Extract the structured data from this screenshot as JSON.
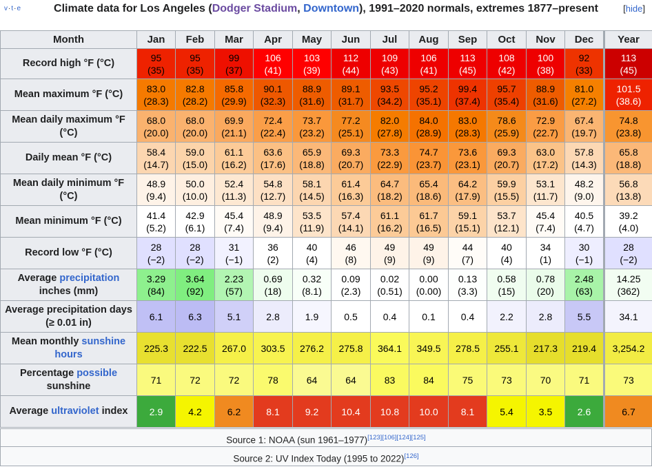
{
  "navbox": {
    "v": "v",
    "t": "t",
    "e": "e",
    "dot": "·"
  },
  "title": {
    "prefix": "Climate data for Los Angeles (",
    "link1": "Dodger Stadium",
    "sep": ", ",
    "link2": "Downtown",
    "suffix": "), 1991–2020 normals, extremes 1877–present"
  },
  "hide_label": "hide",
  "header": [
    "Month",
    "Jan",
    "Feb",
    "Mar",
    "Apr",
    "May",
    "Jun",
    "Jul",
    "Aug",
    "Sep",
    "Oct",
    "Nov",
    "Dec",
    "Year"
  ],
  "rows": [
    {
      "label": "Record high °F (°C)",
      "height": 44,
      "cells": [
        [
          "95",
          "(35)",
          "#ee2200",
          "#000"
        ],
        [
          "95",
          "(35)",
          "#ee2200",
          "#000"
        ],
        [
          "99",
          "(37)",
          "#ee1000",
          "#000"
        ],
        [
          "106",
          "(41)",
          "#ff0000",
          "#fff"
        ],
        [
          "103",
          "(39)",
          "#ff0000",
          "#fff"
        ],
        [
          "112",
          "(44)",
          "#ee0000",
          "#fff"
        ],
        [
          "109",
          "(43)",
          "#ee0000",
          "#fff"
        ],
        [
          "106",
          "(41)",
          "#ee0000",
          "#fff"
        ],
        [
          "113",
          "(45)",
          "#ee0000",
          "#fff"
        ],
        [
          "108",
          "(42)",
          "#ee0000",
          "#fff"
        ],
        [
          "100",
          "(38)",
          "#ee0000",
          "#fff"
        ],
        [
          "92",
          "(33)",
          "#ee3300",
          "#000"
        ],
        [
          "113",
          "(45)",
          "#cc0000",
          "#fff"
        ]
      ]
    },
    {
      "label": "Mean maximum °F (°C)",
      "height": 46,
      "cells": [
        [
          "83.0",
          "(28.3)",
          "#f57a00",
          "#000"
        ],
        [
          "82.8",
          "(28.2)",
          "#f57a00",
          "#000"
        ],
        [
          "85.8",
          "(29.9)",
          "#f56a00",
          "#000"
        ],
        [
          "90.1",
          "(32.3)",
          "#ee5800",
          "#000"
        ],
        [
          "88.9",
          "(31.6)",
          "#ee5c00",
          "#000"
        ],
        [
          "89.1",
          "(31.7)",
          "#ee5c00",
          "#000"
        ],
        [
          "93.5",
          "(34.2)",
          "#ee4800",
          "#000"
        ],
        [
          "95.2",
          "(35.1)",
          "#ee4400",
          "#000"
        ],
        [
          "99.4",
          "(37.4)",
          "#ee3300",
          "#000"
        ],
        [
          "95.7",
          "(35.4)",
          "#ee4000",
          "#000"
        ],
        [
          "88.9",
          "(31.6)",
          "#ee5c00",
          "#000"
        ],
        [
          "81.0",
          "(27.2)",
          "#f58000",
          "#000"
        ],
        [
          "101.5",
          "(38.6)",
          "#ee2200",
          "#fff"
        ]
      ]
    },
    {
      "label": "Mean daily maximum °F (°C)",
      "height": 46,
      "cells": [
        [
          "68.0",
          "(20.0)",
          "#fab26e",
          "#000"
        ],
        [
          "68.0",
          "(20.0)",
          "#fab26e",
          "#000"
        ],
        [
          "69.9",
          "(21.1)",
          "#faa95e",
          "#000"
        ],
        [
          "72.4",
          "(22.4)",
          "#fa9e48",
          "#000"
        ],
        [
          "73.7",
          "(23.2)",
          "#fa983b",
          "#000"
        ],
        [
          "77.2",
          "(25.1)",
          "#f58a20",
          "#000"
        ],
        [
          "82.0",
          "(27.8)",
          "#f57c00",
          "#000"
        ],
        [
          "84.0",
          "(28.9)",
          "#f57200",
          "#000"
        ],
        [
          "83.0",
          "(28.3)",
          "#f57800",
          "#000"
        ],
        [
          "78.6",
          "(25.9)",
          "#f58a1a",
          "#000"
        ],
        [
          "72.9",
          "(22.7)",
          "#fa9c44",
          "#000"
        ],
        [
          "67.4",
          "(19.7)",
          "#fab572",
          "#000"
        ],
        [
          "74.8",
          "(23.8)",
          "#f89530",
          "#000"
        ]
      ]
    },
    {
      "label": "Daily mean °F (°C)",
      "height": 46,
      "cells": [
        [
          "58.4",
          "(14.7)",
          "#fcd6b0",
          "#000"
        ],
        [
          "59.0",
          "(15.0)",
          "#fcd4aa",
          "#000"
        ],
        [
          "61.1",
          "(16.2)",
          "#fccb98",
          "#000"
        ],
        [
          "63.6",
          "(17.6)",
          "#fbc084",
          "#000"
        ],
        [
          "65.9",
          "(18.8)",
          "#fbb878",
          "#000"
        ],
        [
          "69.3",
          "(20.7)",
          "#faab60",
          "#000"
        ],
        [
          "73.3",
          "(22.9)",
          "#fa9a3e",
          "#000"
        ],
        [
          "74.7",
          "(23.7)",
          "#fa9436",
          "#000"
        ],
        [
          "73.6",
          "(23.1)",
          "#fa983b",
          "#000"
        ],
        [
          "69.3",
          "(20.7)",
          "#faab60",
          "#000"
        ],
        [
          "63.0",
          "(17.2)",
          "#fbc388",
          "#000"
        ],
        [
          "57.8",
          "(14.3)",
          "#fcd8b4",
          "#000"
        ],
        [
          "65.8",
          "(18.8)",
          "#fbb878",
          "#000"
        ]
      ]
    },
    {
      "label": "Mean daily minimum °F (°C)",
      "height": 46,
      "cells": [
        [
          "48.9",
          "(9.4)",
          "#fef3e8",
          "#000"
        ],
        [
          "50.0",
          "(10.0)",
          "#feefe0",
          "#000"
        ],
        [
          "52.4",
          "(11.3)",
          "#fde8d2",
          "#000"
        ],
        [
          "54.8",
          "(12.7)",
          "#fde0c4",
          "#000"
        ],
        [
          "58.1",
          "(14.5)",
          "#fcd6b0",
          "#000"
        ],
        [
          "61.4",
          "(16.3)",
          "#fccb98",
          "#000"
        ],
        [
          "64.7",
          "(18.2)",
          "#fbbc7e",
          "#000"
        ],
        [
          "65.4",
          "(18.6)",
          "#fbba7a",
          "#000"
        ],
        [
          "64.2",
          "(17.9)",
          "#fbbe82",
          "#000"
        ],
        [
          "59.9",
          "(15.5)",
          "#fcd0a2",
          "#000"
        ],
        [
          "53.1",
          "(11.7)",
          "#fde6ce",
          "#000"
        ],
        [
          "48.2",
          "(9.0)",
          "#fef5ec",
          "#000"
        ],
        [
          "56.8",
          "(13.8)",
          "#fcdab8",
          "#000"
        ]
      ]
    },
    {
      "label": "Mean minimum °F (°C)",
      "height": 46,
      "cells": [
        [
          "41.4",
          "(5.2)",
          "#ffffff",
          "#000"
        ],
        [
          "42.9",
          "(6.1)",
          "#ffffff",
          "#000"
        ],
        [
          "45.4",
          "(7.4)",
          "#fffbf6",
          "#000"
        ],
        [
          "48.9",
          "(9.4)",
          "#fef3e8",
          "#000"
        ],
        [
          "53.5",
          "(11.9)",
          "#fde4ca",
          "#000"
        ],
        [
          "57.4",
          "(14.1)",
          "#fcd8b4",
          "#000"
        ],
        [
          "61.1",
          "(16.2)",
          "#fccb98",
          "#000"
        ],
        [
          "61.7",
          "(16.5)",
          "#fcc994",
          "#000"
        ],
        [
          "59.1",
          "(15.1)",
          "#fcd3a8",
          "#000"
        ],
        [
          "53.7",
          "(12.1)",
          "#fde4ca",
          "#000"
        ],
        [
          "45.4",
          "(7.4)",
          "#fffbf6",
          "#000"
        ],
        [
          "40.5",
          "(4.7)",
          "#ffffff",
          "#000"
        ],
        [
          "39.2",
          "(4.0)",
          "#ffffff",
          "#000"
        ]
      ]
    },
    {
      "label": "Record low °F (°C)",
      "height": 46,
      "cells": [
        [
          "28",
          "(−2)",
          "#e0e0ff",
          "#000"
        ],
        [
          "28",
          "(−2)",
          "#e0e0ff",
          "#000"
        ],
        [
          "31",
          "(−1)",
          "#f2f2ff",
          "#000"
        ],
        [
          "36",
          "(2)",
          "#ffffff",
          "#000"
        ],
        [
          "40",
          "(4)",
          "#ffffff",
          "#000"
        ],
        [
          "46",
          "(8)",
          "#fff8f0",
          "#000"
        ],
        [
          "49",
          "(9)",
          "#fef3e8",
          "#000"
        ],
        [
          "49",
          "(9)",
          "#fef3e8",
          "#000"
        ],
        [
          "44",
          "(7)",
          "#fffcf8",
          "#000"
        ],
        [
          "40",
          "(4)",
          "#ffffff",
          "#000"
        ],
        [
          "34",
          "(1)",
          "#ffffff",
          "#000"
        ],
        [
          "30",
          "(−1)",
          "#eeeeff",
          "#000"
        ],
        [
          "28",
          "(−2)",
          "#e0e0ff",
          "#000"
        ]
      ]
    },
    {
      "label_pre": "Average ",
      "label_link": "precipitation",
      "label_post": " inches (mm)",
      "height": 46,
      "cells": [
        [
          "3.29",
          "(84)",
          "#8ef08e",
          "#000"
        ],
        [
          "3.64",
          "(92)",
          "#80ee80",
          "#000"
        ],
        [
          "2.23",
          "(57)",
          "#b2f5b2",
          "#000"
        ],
        [
          "0.69",
          "(18)",
          "#eefdee",
          "#000"
        ],
        [
          "0.32",
          "(8.1)",
          "#f8fff8",
          "#000"
        ],
        [
          "0.09",
          "(2.3)",
          "#ffffff",
          "#000"
        ],
        [
          "0.02",
          "(0.51)",
          "#ffffff",
          "#000"
        ],
        [
          "0.00",
          "(0.00)",
          "#ffffff",
          "#000"
        ],
        [
          "0.13",
          "(3.3)",
          "#fdfffd",
          "#000"
        ],
        [
          "0.58",
          "(15)",
          "#f0fdf0",
          "#000"
        ],
        [
          "0.78",
          "(20)",
          "#eafcea",
          "#000"
        ],
        [
          "2.48",
          "(63)",
          "#a8f3a8",
          "#000"
        ],
        [
          "14.25",
          "(362)",
          "#f2fdf2",
          "#000"
        ]
      ]
    },
    {
      "label": "Average precipitation days (≥ 0.01 in)",
      "height": 46,
      "cells": [
        [
          "6.1",
          "",
          "#c0c0f5",
          "#000"
        ],
        [
          "6.3",
          "",
          "#bcbcf4",
          "#000"
        ],
        [
          "5.1",
          "",
          "#d0d0f8",
          "#000"
        ],
        [
          "2.8",
          "",
          "#ececfc",
          "#000"
        ],
        [
          "1.9",
          "",
          "#f6f6fe",
          "#000"
        ],
        [
          "0.5",
          "",
          "#ffffff",
          "#000"
        ],
        [
          "0.4",
          "",
          "#ffffff",
          "#000"
        ],
        [
          "0.1",
          "",
          "#ffffff",
          "#000"
        ],
        [
          "0.4",
          "",
          "#ffffff",
          "#000"
        ],
        [
          "2.2",
          "",
          "#f2f2fd",
          "#000"
        ],
        [
          "2.8",
          "",
          "#ececfc",
          "#000"
        ],
        [
          "5.5",
          "",
          "#c8c8f6",
          "#000"
        ],
        [
          "34.1",
          "",
          "#f4f4fd",
          "#000"
        ]
      ]
    },
    {
      "label_pre": "Mean monthly ",
      "label_link": "sunshine hours",
      "label_post": "",
      "height": 46,
      "cells": [
        [
          "225.3",
          "",
          "#e8e030",
          "#000"
        ],
        [
          "222.5",
          "",
          "#e8e030",
          "#000"
        ],
        [
          "267.0",
          "",
          "#f5f048",
          "#000"
        ],
        [
          "303.5",
          "",
          "#f7f350",
          "#000"
        ],
        [
          "276.2",
          "",
          "#f5f048",
          "#000"
        ],
        [
          "275.8",
          "",
          "#f5f048",
          "#000"
        ],
        [
          "364.1",
          "",
          "#fafa5a",
          "#000"
        ],
        [
          "349.5",
          "",
          "#f8f555",
          "#000"
        ],
        [
          "278.5",
          "",
          "#f5f048",
          "#000"
        ],
        [
          "255.1",
          "",
          "#eee83a",
          "#000"
        ],
        [
          "217.3",
          "",
          "#e6de2c",
          "#000"
        ],
        [
          "219.4",
          "",
          "#e6de2c",
          "#000"
        ],
        [
          "3,254.2",
          "",
          "#f2ec44",
          "#000"
        ]
      ]
    },
    {
      "label_pre": "Percentage ",
      "label_link": "possible",
      "label_post": " sunshine",
      "height": 46,
      "cells": [
        [
          "71",
          "",
          "#fafa7e",
          "#000"
        ],
        [
          "72",
          "",
          "#fafa7e",
          "#000"
        ],
        [
          "72",
          "",
          "#fafa7e",
          "#000"
        ],
        [
          "78",
          "",
          "#fafa6e",
          "#000"
        ],
        [
          "64",
          "",
          "#fafa92",
          "#000"
        ],
        [
          "64",
          "",
          "#fafa92",
          "#000"
        ],
        [
          "83",
          "",
          "#fafa60",
          "#000"
        ],
        [
          "84",
          "",
          "#fafa5e",
          "#000"
        ],
        [
          "75",
          "",
          "#fafa76",
          "#000"
        ],
        [
          "73",
          "",
          "#fafa7a",
          "#000"
        ],
        [
          "70",
          "",
          "#fafa82",
          "#000"
        ],
        [
          "71",
          "",
          "#fafa7e",
          "#000"
        ],
        [
          "73",
          "",
          "#fafa7a",
          "#000"
        ]
      ]
    },
    {
      "label_pre": "Average ",
      "label_link": "ultraviolet",
      "label_post": " index",
      "height": 46,
      "cells": [
        [
          "2.9",
          "",
          "#3caa3c",
          "#fff"
        ],
        [
          "4.2",
          "",
          "#f5f500",
          "#000"
        ],
        [
          "6.2",
          "",
          "#f08a20",
          "#000"
        ],
        [
          "8.1",
          "",
          "#e33b1e",
          "#fff"
        ],
        [
          "9.2",
          "",
          "#e33b1e",
          "#fff"
        ],
        [
          "10.4",
          "",
          "#e33b1e",
          "#fff"
        ],
        [
          "10.8",
          "",
          "#e33b1e",
          "#fff"
        ],
        [
          "10.0",
          "",
          "#e33b1e",
          "#fff"
        ],
        [
          "8.1",
          "",
          "#e33b1e",
          "#fff"
        ],
        [
          "5.4",
          "",
          "#f5f500",
          "#000"
        ],
        [
          "3.5",
          "",
          "#f5f500",
          "#000"
        ],
        [
          "2.6",
          "",
          "#3caa3c",
          "#fff"
        ],
        [
          "6.7",
          "",
          "#f08a20",
          "#000"
        ]
      ]
    }
  ],
  "sources": [
    {
      "text": "Source 1: NOAA (sun 1961–1977)",
      "refs": "[123][106][124][125]"
    },
    {
      "text": "Source 2: UV Index Today (1995 to 2022)",
      "refs": "[126]"
    }
  ]
}
